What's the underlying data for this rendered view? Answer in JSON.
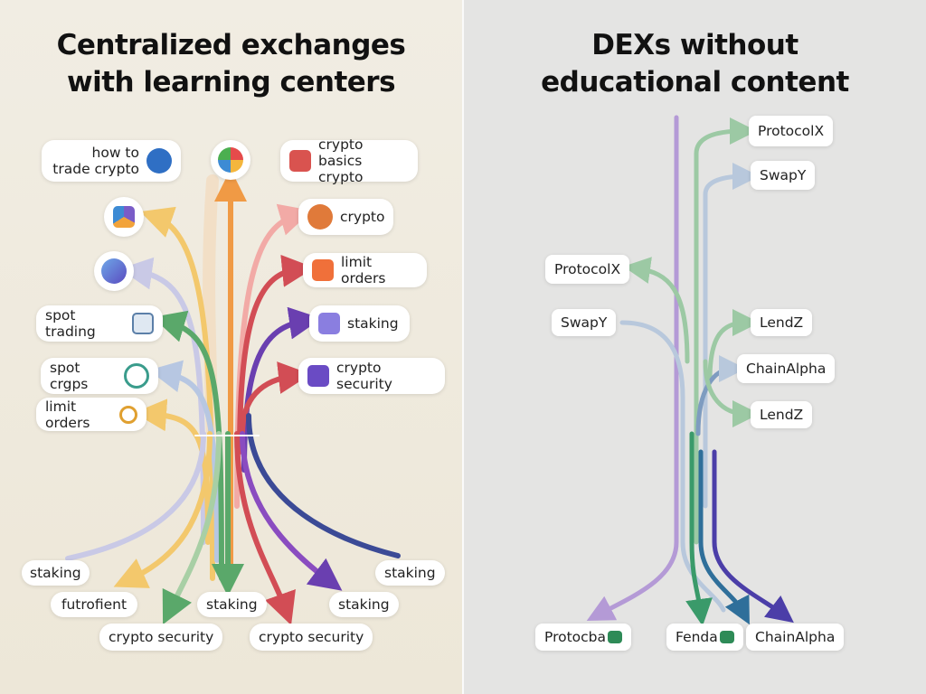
{
  "left": {
    "title_lines": [
      "Centralized exchanges",
      "with learning centers"
    ],
    "labels": [
      "how to trade crypto",
      "crypto basics crypto",
      "crypto",
      "limit orders",
      "spot trading",
      "staking",
      "spot crgps",
      "crypto security",
      "limit orders"
    ],
    "bottom_labels": [
      "staking",
      "futrofient",
      "crypto security",
      "staking",
      "crypto security",
      "staking",
      "staking"
    ]
  },
  "right": {
    "title_lines": [
      "DEXs without",
      "educational content"
    ],
    "labels": [
      "ProtocolX",
      "SwapY",
      "ProtocolX",
      "SwapY",
      "LendZ",
      "ChainAlpha",
      "LendZ"
    ],
    "bottom_labels": [
      "Protocba",
      "Fenda",
      "ChainAlpha"
    ]
  }
}
